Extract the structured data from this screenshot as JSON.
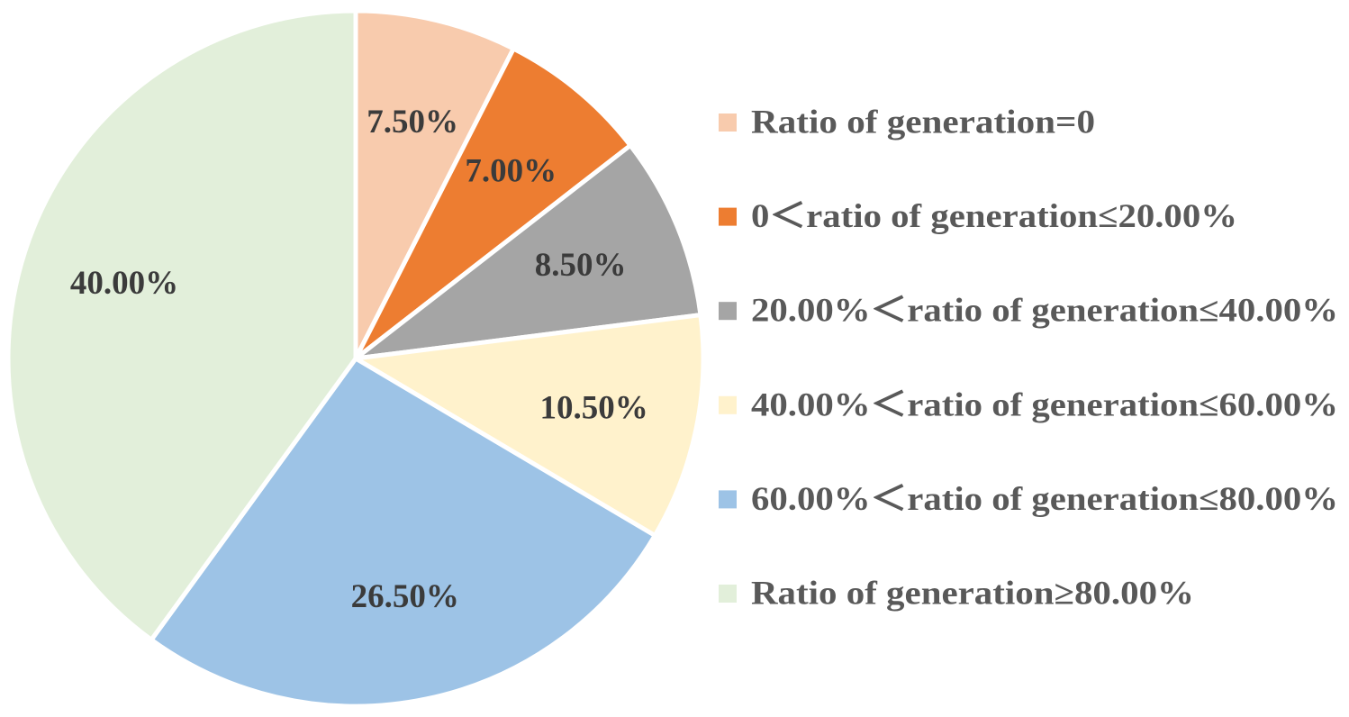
{
  "chart_data": {
    "type": "pie",
    "title": "",
    "legend_position": "right",
    "slices": [
      {
        "label": "Ratio of generation=0",
        "value": 7.5,
        "value_label": "7.50%",
        "color": "#F8CBAD"
      },
      {
        "label": "0＜ratio of generation≤20.00%",
        "value": 7.0,
        "value_label": "7.00%",
        "color": "#ED7D31"
      },
      {
        "label": "20.00%＜ratio of generation≤40.00%",
        "value": 8.5,
        "value_label": "8.50%",
        "color": "#A5A5A5"
      },
      {
        "label": "40.00%＜ratio of generation≤60.00%",
        "value": 10.5,
        "value_label": "10.50%",
        "color": "#FFF2CC"
      },
      {
        "label": "60.00%＜ratio of generation≤80.00%",
        "value": 26.5,
        "value_label": "26.50%",
        "color": "#9DC3E6"
      },
      {
        "label": "Ratio of generation≥80.00%",
        "value": 40.0,
        "value_label": "40.00%",
        "color": "#E2EFDA"
      }
    ]
  }
}
